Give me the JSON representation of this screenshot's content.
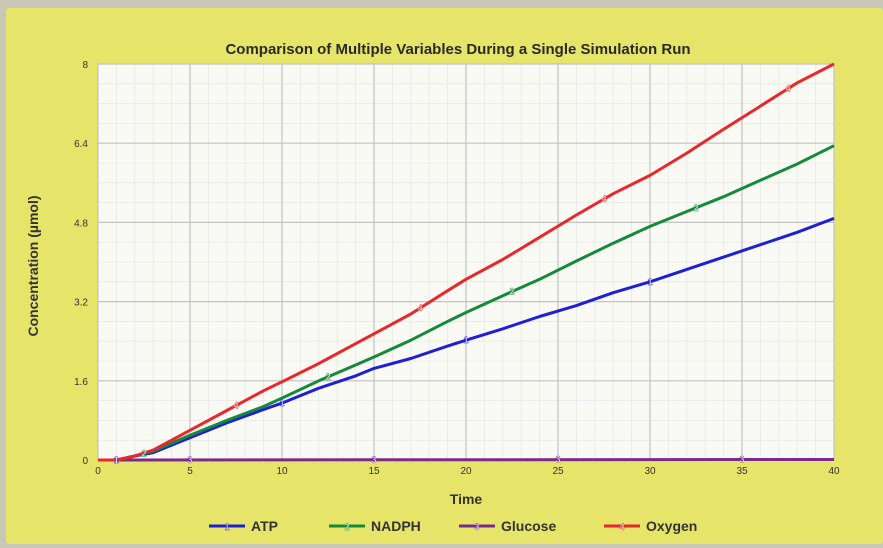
{
  "chart_data": {
    "type": "line",
    "title": "Comparison of Multiple Variables During a Single Simulation Run",
    "xlabel": "Time",
    "ylabel": "Concentration (µmol)",
    "xlim": [
      0,
      40
    ],
    "ylim": [
      0,
      8
    ],
    "x_ticks": [
      "0",
      "5",
      "10",
      "15",
      "20",
      "25",
      "30",
      "35",
      "40"
    ],
    "y_ticks": [
      "0",
      "1.6",
      "3.2",
      "4.8",
      "6.4",
      "8"
    ],
    "grid": true,
    "legend_position": "bottom",
    "series": [
      {
        "name": "ATP",
        "marker": "1",
        "color": "#1f1fd6",
        "points": [
          [
            0,
            0
          ],
          [
            1,
            0
          ],
          [
            2,
            0.08
          ],
          [
            3,
            0.15
          ],
          [
            5,
            0.45
          ],
          [
            7,
            0.75
          ],
          [
            9,
            1.02
          ],
          [
            10,
            1.15
          ],
          [
            11,
            1.3
          ],
          [
            12,
            1.45
          ],
          [
            14,
            1.7
          ],
          [
            15,
            1.85
          ],
          [
            17,
            2.05
          ],
          [
            19,
            2.3
          ],
          [
            20,
            2.42
          ],
          [
            22,
            2.65
          ],
          [
            24,
            2.9
          ],
          [
            26,
            3.12
          ],
          [
            28,
            3.38
          ],
          [
            30,
            3.6
          ],
          [
            32,
            3.85
          ],
          [
            34,
            4.1
          ],
          [
            36,
            4.35
          ],
          [
            38,
            4.6
          ],
          [
            40,
            4.88
          ]
        ],
        "marker_x": [
          1,
          10,
          20,
          30
        ]
      },
      {
        "name": "NADPH",
        "marker": "2",
        "color": "#168a3b",
        "points": [
          [
            0,
            0
          ],
          [
            1,
            0
          ],
          [
            2,
            0.08
          ],
          [
            3,
            0.18
          ],
          [
            5,
            0.5
          ],
          [
            7,
            0.8
          ],
          [
            9,
            1.08
          ],
          [
            10,
            1.25
          ],
          [
            12,
            1.6
          ],
          [
            14,
            1.92
          ],
          [
            15,
            2.08
          ],
          [
            17,
            2.42
          ],
          [
            19,
            2.8
          ],
          [
            20,
            2.98
          ],
          [
            22,
            3.32
          ],
          [
            24,
            3.65
          ],
          [
            26,
            4.02
          ],
          [
            28,
            4.38
          ],
          [
            30,
            4.72
          ],
          [
            32,
            5.02
          ],
          [
            34,
            5.32
          ],
          [
            36,
            5.65
          ],
          [
            38,
            5.98
          ],
          [
            40,
            6.35
          ]
        ],
        "marker_x": [
          2.5,
          12.5,
          22.5,
          32.5
        ]
      },
      {
        "name": "Glucose",
        "marker": "3",
        "color": "#7a2a8a",
        "points": [
          [
            0,
            0
          ],
          [
            40,
            0.01
          ]
        ],
        "marker_x": [
          5,
          15,
          25,
          35
        ]
      },
      {
        "name": "Oxygen",
        "marker": "4",
        "color": "#e8282a",
        "points": [
          [
            0,
            0
          ],
          [
            1,
            0
          ],
          [
            2,
            0.08
          ],
          [
            3,
            0.2
          ],
          [
            5,
            0.6
          ],
          [
            7,
            1.0
          ],
          [
            9,
            1.4
          ],
          [
            10,
            1.58
          ],
          [
            12,
            1.95
          ],
          [
            14,
            2.35
          ],
          [
            15,
            2.55
          ],
          [
            17,
            2.95
          ],
          [
            19,
            3.42
          ],
          [
            20,
            3.65
          ],
          [
            22,
            4.05
          ],
          [
            24,
            4.5
          ],
          [
            26,
            4.95
          ],
          [
            28,
            5.38
          ],
          [
            30,
            5.75
          ],
          [
            32,
            6.2
          ],
          [
            34,
            6.68
          ],
          [
            36,
            7.15
          ],
          [
            38,
            7.62
          ],
          [
            40,
            8.0
          ]
        ],
        "marker_x": [
          7.5,
          17.5,
          27.5,
          37.5
        ]
      }
    ]
  }
}
